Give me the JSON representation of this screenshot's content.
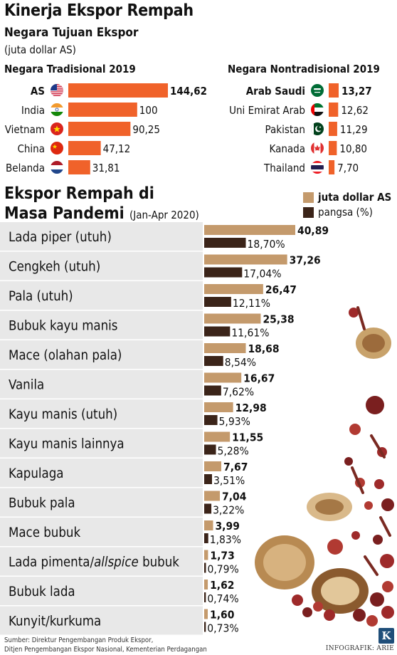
{
  "title": "Kinerja Ekspor Rempah",
  "subtitle": "Negara Tujuan Ekspor",
  "unit": "(juta dollar AS)",
  "section2": {
    "title_line1": "Ekspor Rempah di",
    "title_line2": "Masa Pandemi",
    "period": "(Jan-Apr 2020)"
  },
  "legend": {
    "value_label": "juta dollar AS",
    "share_label": "pangsa (%)"
  },
  "colors": {
    "orange": "#f0622a",
    "tan": "#c49a6c",
    "brown": "#3b2419",
    "row_band": "#e8e8e8"
  },
  "footer": {
    "source_line1": "Sumber: Direktur Pengembangan Produk Ekspor,",
    "source_line2": "Ditjen Pengembangan Ekspor Nasional, Kementerian Perdagangan",
    "credit": "INFOGRAFIK: ARIE",
    "logo": "K"
  },
  "chart_data": [
    {
      "type": "bar",
      "title": "Negara Tradisional 2019",
      "categories": [
        "AS",
        "India",
        "Vietnam",
        "China",
        "Belanda"
      ],
      "values": [
        144.62,
        100,
        90.25,
        47.12,
        31.81
      ],
      "value_labels": [
        "144,62",
        "100",
        "90,25",
        "47,12",
        "31,81"
      ],
      "flags": [
        "us-flag-icon",
        "india-flag-icon",
        "vietnam-flag-icon",
        "china-flag-icon",
        "netherlands-flag-icon"
      ]
    },
    {
      "type": "bar",
      "title": "Negara Nontradisional 2019",
      "categories": [
        "Arab Saudi",
        "Uni Emirat Arab",
        "Pakistan",
        "Kanada",
        "Thailand"
      ],
      "values": [
        13.27,
        12.62,
        11.29,
        10.8,
        7.7
      ],
      "value_labels": [
        "13,27",
        "12,62",
        "11,29",
        "10,80",
        "7,70"
      ],
      "flags": [
        "saudi-flag-icon",
        "uae-flag-icon",
        "pakistan-flag-icon",
        "canada-flag-icon",
        "thailand-flag-icon"
      ]
    },
    {
      "type": "bar",
      "categories": [
        "Lada piper (utuh)",
        "Cengkeh (utuh)",
        "Pala (utuh)",
        "Bubuk kayu manis",
        "Mace (olahan pala)",
        "Vanila",
        "Kayu manis (utuh)",
        "Kayu manis lainnya",
        "Kapulaga",
        "Bubuk pala",
        "Mace bubuk",
        "Lada pimenta/allspice bubuk",
        "Bubuk lada",
        "Kunyit/kurkuma"
      ],
      "series": [
        {
          "name": "juta dollar AS",
          "values": [
            40.89,
            37.26,
            26.47,
            25.38,
            18.68,
            16.67,
            12.98,
            11.55,
            7.67,
            7.04,
            3.99,
            1.73,
            1.62,
            1.6
          ],
          "labels": [
            "40,89",
            "37,26",
            "26,47",
            "25,38",
            "18,68",
            "16,67",
            "12,98",
            "11,55",
            "7,67",
            "7,04",
            "3,99",
            "1,73",
            "1,62",
            "1,60"
          ]
        },
        {
          "name": "pangsa (%)",
          "values": [
            18.7,
            17.04,
            12.11,
            11.61,
            8.54,
            7.62,
            5.93,
            5.28,
            3.51,
            3.22,
            1.83,
            0.79,
            0.74,
            0.73
          ],
          "labels": [
            "18,70%",
            "17,04%",
            "12,11%",
            "11,61%",
            "8,54%",
            "7,62%",
            "5,93%",
            "5,28%",
            "3,51%",
            "3,22%",
            "1,83%",
            "0,79%",
            "0,74%",
            "0,73%"
          ]
        }
      ]
    }
  ]
}
